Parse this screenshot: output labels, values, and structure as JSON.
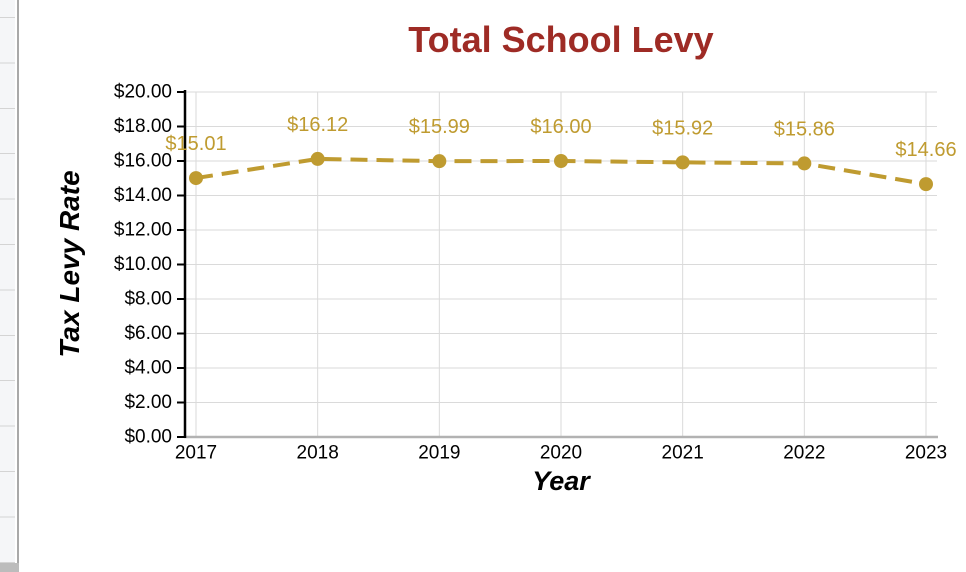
{
  "chart_data": {
    "type": "line",
    "title": "Total School Levy",
    "xlabel": "Year",
    "ylabel": "Tax Levy Rate",
    "categories": [
      "2017",
      "2018",
      "2019",
      "2020",
      "2021",
      "2022",
      "2023"
    ],
    "values": [
      15.01,
      16.12,
      15.99,
      16.0,
      15.92,
      15.86,
      14.66
    ],
    "data_labels": [
      "$15.01",
      "$16.12",
      "$15.99",
      "$16.00",
      "$15.92",
      "$15.86",
      "$14.66"
    ],
    "y_tick_labels": [
      "$0.00",
      "$2.00",
      "$4.00",
      "$6.00",
      "$8.00",
      "$10.00",
      "$12.00",
      "$14.00",
      "$16.00",
      "$18.00",
      "$20.00"
    ],
    "ylim": [
      0,
      20
    ],
    "y_step": 2,
    "grid": true,
    "legend": "none",
    "line_style": "dashed",
    "marker": "circle",
    "colors": {
      "series": "#BF9B30",
      "data_label": "#BF9B30",
      "title": "#9E2B25",
      "gridline": "#DADADA",
      "x_axis_line": "#B2B2B2",
      "y_axis_line": "#000000",
      "tick_label": "#000000"
    }
  }
}
